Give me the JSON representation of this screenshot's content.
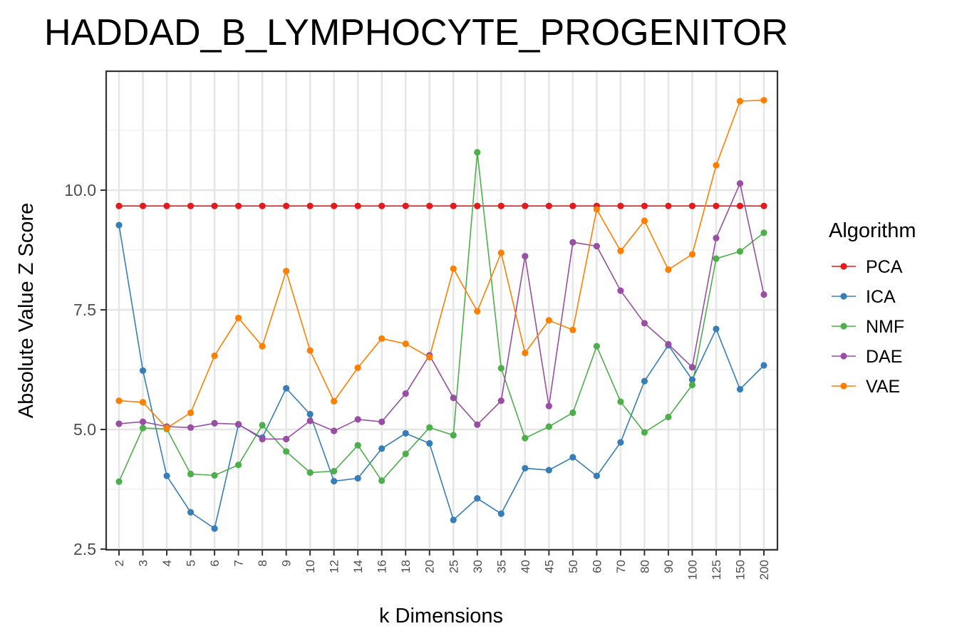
{
  "chart_data": {
    "type": "line",
    "title": "HADDAD_B_LYMPHOCYTE_PROGENITOR",
    "xlabel": "k Dimensions",
    "ylabel": "Absolute Value Z Score",
    "categories": [
      "2",
      "3",
      "4",
      "5",
      "6",
      "7",
      "8",
      "9",
      "10",
      "12",
      "14",
      "16",
      "18",
      "20",
      "25",
      "30",
      "35",
      "40",
      "45",
      "50",
      "60",
      "70",
      "80",
      "90",
      "100",
      "125",
      "150",
      "200"
    ],
    "yticks": [
      "2.5",
      "5.0",
      "7.5",
      "10.0"
    ],
    "ylim": [
      2.5,
      12.5
    ],
    "grid": true,
    "legend": {
      "title": "Algorithm",
      "position": "right"
    },
    "series": [
      {
        "name": "PCA",
        "color": "#E41A1C",
        "values": [
          9.67,
          9.67,
          9.67,
          9.67,
          9.67,
          9.67,
          9.67,
          9.67,
          9.67,
          9.67,
          9.67,
          9.67,
          9.67,
          9.67,
          9.67,
          9.67,
          9.67,
          9.67,
          9.67,
          9.67,
          9.67,
          9.67,
          9.67,
          9.67,
          9.67,
          9.67,
          9.67,
          9.67
        ]
      },
      {
        "name": "ICA",
        "color": "#377EB8",
        "values": [
          9.27,
          6.23,
          4.03,
          3.27,
          2.93,
          5.1,
          4.83,
          5.86,
          5.32,
          3.92,
          3.98,
          4.6,
          4.92,
          4.71,
          3.11,
          3.56,
          3.24,
          4.19,
          4.15,
          4.42,
          4.03,
          4.73,
          6.01,
          6.76,
          6.04,
          7.1,
          5.84,
          6.34
        ]
      },
      {
        "name": "NMF",
        "color": "#4DAF4A",
        "values": [
          3.91,
          5.03,
          5.01,
          4.07,
          4.04,
          4.26,
          5.09,
          4.54,
          4.1,
          4.13,
          4.67,
          3.93,
          4.49,
          5.04,
          4.88,
          10.79,
          6.28,
          4.82,
          5.06,
          5.35,
          6.74,
          5.58,
          4.94,
          5.26,
          5.93,
          8.57,
          8.72,
          9.11
        ]
      },
      {
        "name": "DAE",
        "color": "#984EA3",
        "values": [
          5.12,
          5.16,
          5.06,
          5.04,
          5.13,
          5.11,
          4.8,
          4.8,
          5.18,
          4.97,
          5.21,
          5.16,
          5.75,
          6.55,
          5.66,
          5.1,
          5.6,
          8.62,
          5.49,
          8.91,
          8.83,
          7.9,
          7.22,
          6.78,
          6.3,
          9.0,
          10.14,
          7.82
        ]
      },
      {
        "name": "VAE",
        "color": "#FF7F00",
        "values": [
          5.6,
          5.57,
          5.03,
          5.35,
          6.54,
          7.33,
          6.74,
          8.31,
          6.65,
          5.59,
          6.29,
          6.9,
          6.79,
          6.51,
          8.36,
          7.47,
          8.69,
          6.6,
          7.28,
          7.08,
          9.6,
          8.73,
          9.36,
          8.34,
          8.66,
          10.52,
          11.86,
          11.88
        ]
      }
    ]
  }
}
